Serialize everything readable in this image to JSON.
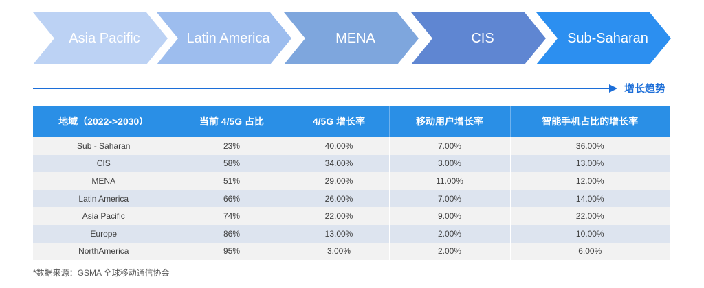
{
  "banner": {
    "regions": [
      "Asia Pacific",
      "Latin America",
      "MENA",
      "CIS",
      "Sub-Saharan"
    ],
    "colors": [
      "#bcd2f4",
      "#9dbdee",
      "#7ea6dd",
      "#5f86d2",
      "#2c8ff0"
    ]
  },
  "trend": {
    "label": "增长趋势",
    "color": "#1c6ed8"
  },
  "table": {
    "headers": [
      "地域（2022->2030）",
      "当前 4/5G 占比",
      "4/5G 增长率",
      "移动用户增长率",
      "智能手机占比的增长率"
    ],
    "rows": [
      [
        "Sub - Saharan",
        "23%",
        "40.00%",
        "7.00%",
        "36.00%"
      ],
      [
        "CIS",
        "58%",
        "34.00%",
        "3.00%",
        "13.00%"
      ],
      [
        "MENA",
        "51%",
        "29.00%",
        "11.00%",
        "12.00%"
      ],
      [
        "Latin America",
        "66%",
        "26.00%",
        "7.00%",
        "14.00%"
      ],
      [
        "Asia Pacific",
        "74%",
        "22.00%",
        "9.00%",
        "22.00%"
      ],
      [
        "Europe",
        "86%",
        "13.00%",
        "2.00%",
        "10.00%"
      ],
      [
        "NorthAmerica",
        "95%",
        "3.00%",
        "2.00%",
        "6.00%"
      ]
    ],
    "header_color": "#2a8fe6",
    "row_colors": [
      "#f2f2f2",
      "#dde4ef"
    ]
  },
  "source": "*数据来源：GSMA 全球移动通信协会"
}
